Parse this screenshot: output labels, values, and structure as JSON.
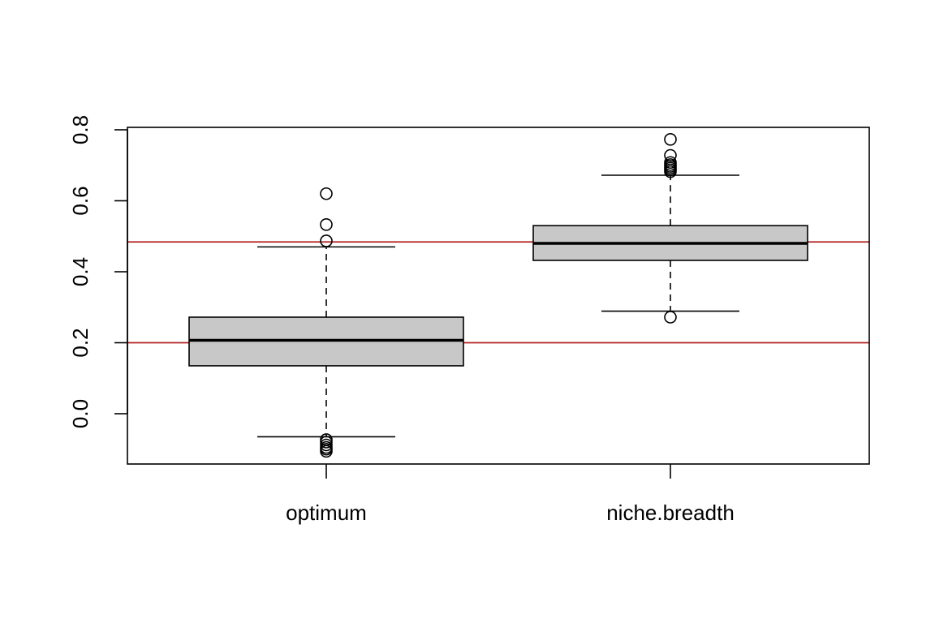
{
  "chart_data": {
    "type": "box",
    "title": "",
    "xlabel": "",
    "ylabel": "",
    "ylim": [
      -0.14,
      0.81
    ],
    "yticks": [
      0.0,
      0.2,
      0.4,
      0.6,
      0.8
    ],
    "ytick_labels": [
      "0.0",
      "0.2",
      "0.4",
      "0.6",
      "0.8"
    ],
    "categories": [
      "optimum",
      "niche.breadth"
    ],
    "boxes": [
      {
        "name": "optimum",
        "whisker_low": -0.065,
        "q1": 0.135,
        "median": 0.207,
        "q3": 0.272,
        "whisker_high": 0.47,
        "outliers": [
          0.62,
          0.533,
          0.487,
          -0.073,
          -0.08,
          -0.088,
          -0.095,
          -0.1,
          -0.106
        ]
      },
      {
        "name": "niche.breadth",
        "whisker_low": 0.289,
        "q1": 0.432,
        "median": 0.48,
        "q3": 0.53,
        "whisker_high": 0.672,
        "outliers": [
          0.773,
          0.728,
          0.708,
          0.702,
          0.697,
          0.692,
          0.687,
          0.682,
          0.272
        ]
      }
    ],
    "reference_lines": [
      0.2,
      0.484
    ],
    "colors": {
      "box_fill": "#c8c8c8",
      "reference_line": "#b22222",
      "stroke": "#000000"
    }
  }
}
